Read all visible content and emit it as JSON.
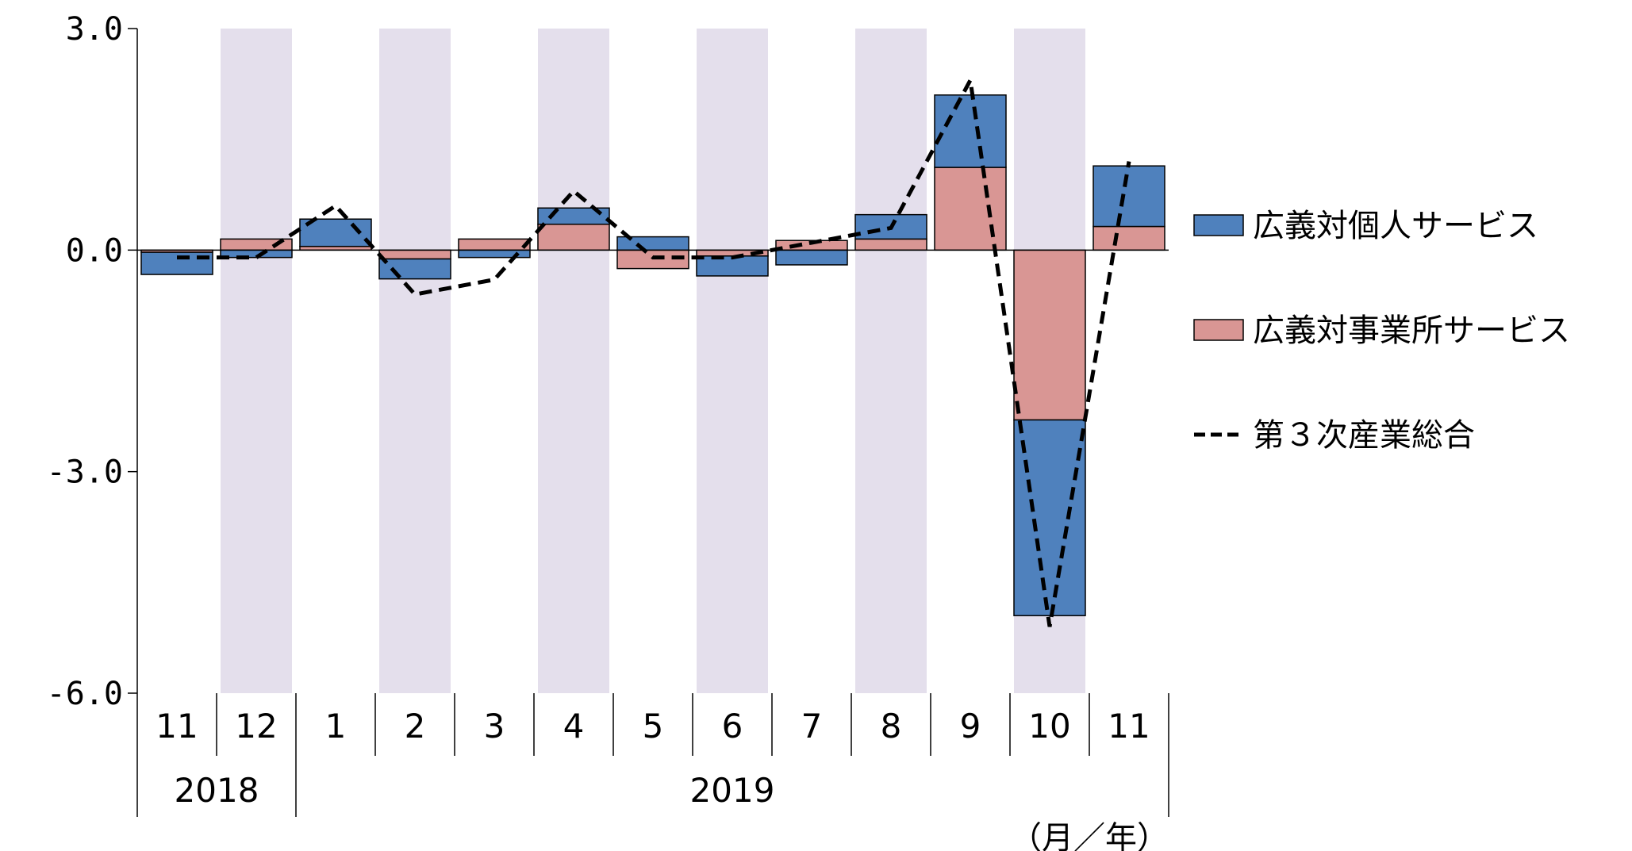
{
  "chart_data": {
    "type": "bar",
    "categories": [
      "11",
      "12",
      "1",
      "2",
      "3",
      "4",
      "5",
      "6",
      "7",
      "8",
      "9",
      "10",
      "11"
    ],
    "year_groups": [
      {
        "label": "2018",
        "from": 0,
        "to": 1
      },
      {
        "label": "2019",
        "from": 2,
        "to": 12
      }
    ],
    "shaded_categories": [
      1,
      3,
      5,
      7,
      9,
      11
    ],
    "series": [
      {
        "name": "広義対個人サービス",
        "kind": "stacked-bar",
        "color": "#4f81bd",
        "values": [
          -0.3,
          -0.1,
          0.37,
          -0.27,
          -0.1,
          0.22,
          0.18,
          -0.27,
          -0.2,
          0.33,
          0.98,
          -2.65,
          0.82
        ]
      },
      {
        "name": "広義対事業所サービス",
        "kind": "stacked-bar",
        "color": "#d99694",
        "values": [
          -0.03,
          0.15,
          0.05,
          -0.12,
          0.15,
          0.35,
          -0.25,
          -0.08,
          0.13,
          0.15,
          1.12,
          -2.3,
          0.32
        ]
      },
      {
        "name": "第３次産業総合",
        "kind": "line",
        "style": "dashed",
        "color": "#000000",
        "values": [
          -0.1,
          -0.1,
          0.6,
          -0.6,
          -0.4,
          0.8,
          -0.1,
          -0.1,
          0.1,
          0.3,
          2.3,
          -5.1,
          1.2
        ]
      }
    ],
    "y_ticks": [
      "3.0",
      "0.0",
      "-3.0",
      "-6.0"
    ],
    "y_tick_values": [
      3,
      0,
      -3,
      -6
    ],
    "ylim": [
      -6,
      3
    ],
    "unit_label": "（月／年）",
    "grid": false,
    "legend_position": "right"
  }
}
